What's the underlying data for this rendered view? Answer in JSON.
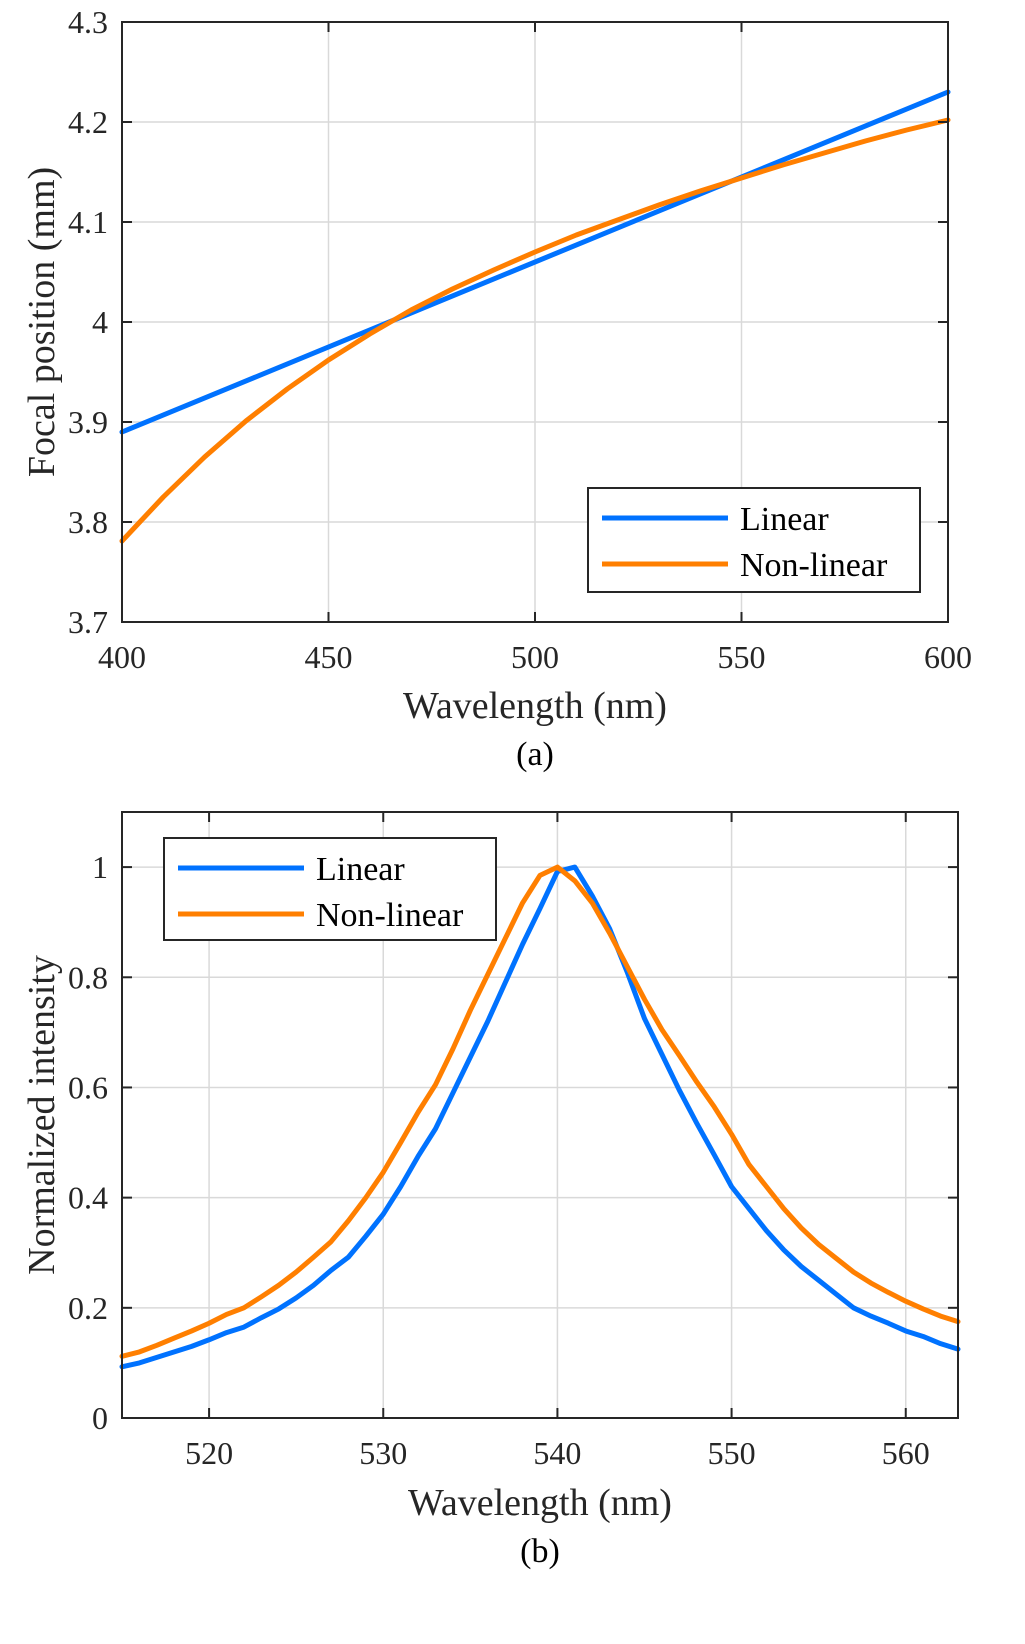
{
  "colors": {
    "linear": "#0072ff",
    "nonlinear": "#ff7f00"
  },
  "chart_data": [
    {
      "type": "line",
      "caption": "(a)",
      "xlabel": "Wavelength (nm)",
      "ylabel": "Focal position (mm)",
      "xlim": [
        400,
        600
      ],
      "ylim": [
        3.7,
        4.3
      ],
      "xticks": [
        400,
        450,
        500,
        550,
        600
      ],
      "yticks": [
        3.7,
        3.8,
        3.9,
        4.0,
        4.1,
        4.2,
        4.3
      ],
      "xtick_labels": [
        "400",
        "450",
        "500",
        "550",
        "600"
      ],
      "ytick_labels": [
        "3.7",
        "3.8",
        "3.9",
        "4",
        "4.1",
        "4.2",
        "4.3"
      ],
      "grid": true,
      "legend_position": "bottom-right",
      "series": [
        {
          "name": "Linear",
          "color": "#0072ff",
          "x": [
            400,
            600
          ],
          "y": [
            3.89,
            4.23
          ]
        },
        {
          "name": "Non-linear",
          "color": "#ff7f00",
          "x": [
            400,
            410,
            420,
            430,
            440,
            450,
            460,
            470,
            480,
            490,
            500,
            510,
            520,
            530,
            540,
            550,
            560,
            570,
            580,
            590,
            600
          ],
          "y": [
            3.781,
            3.825,
            3.865,
            3.901,
            3.933,
            3.962,
            3.988,
            4.012,
            4.033,
            4.052,
            4.07,
            4.087,
            4.102,
            4.117,
            4.131,
            4.144,
            4.157,
            4.169,
            4.181,
            4.192,
            4.202
          ]
        }
      ]
    },
    {
      "type": "line",
      "caption": "(b)",
      "xlabel": "Wavelength (nm)",
      "ylabel": "Normalized intensity",
      "xlim": [
        515,
        563
      ],
      "ylim": [
        0,
        1.1
      ],
      "xticks": [
        520,
        530,
        540,
        550,
        560
      ],
      "yticks": [
        0,
        0.2,
        0.4,
        0.6,
        0.8,
        1.0
      ],
      "xtick_labels": [
        "520",
        "530",
        "540",
        "550",
        "560"
      ],
      "ytick_labels": [
        "0",
        "0.2",
        "0.4",
        "0.6",
        "0.8",
        "1"
      ],
      "grid": true,
      "legend_position": "top-left",
      "series": [
        {
          "name": "Linear",
          "color": "#0072ff",
          "x": [
            515,
            516,
            517,
            518,
            519,
            520,
            521,
            522,
            523,
            524,
            525,
            526,
            527,
            528,
            529,
            530,
            531,
            532,
            533,
            534,
            535,
            536,
            537,
            538,
            539,
            540,
            541,
            542,
            543,
            544,
            545,
            546,
            547,
            548,
            549,
            550,
            551,
            552,
            553,
            554,
            555,
            556,
            557,
            558,
            559,
            560,
            561,
            562,
            563
          ],
          "y": [
            0.093,
            0.1,
            0.11,
            0.12,
            0.13,
            0.142,
            0.155,
            0.165,
            0.182,
            0.198,
            0.218,
            0.241,
            0.268,
            0.292,
            0.33,
            0.37,
            0.42,
            0.475,
            0.525,
            0.59,
            0.655,
            0.72,
            0.79,
            0.86,
            0.925,
            0.992,
            1.0,
            0.948,
            0.888,
            0.81,
            0.725,
            0.66,
            0.595,
            0.535,
            0.478,
            0.42,
            0.38,
            0.34,
            0.305,
            0.275,
            0.25,
            0.225,
            0.2,
            0.185,
            0.172,
            0.158,
            0.148,
            0.135,
            0.125
          ]
        },
        {
          "name": "Non-linear",
          "color": "#ff7f00",
          "x": [
            515,
            516,
            517,
            518,
            519,
            520,
            521,
            522,
            523,
            524,
            525,
            526,
            527,
            528,
            529,
            530,
            531,
            532,
            533,
            534,
            535,
            536,
            537,
            538,
            539,
            540,
            541,
            542,
            543,
            544,
            545,
            546,
            547,
            548,
            549,
            550,
            551,
            552,
            553,
            554,
            555,
            556,
            557,
            558,
            559,
            560,
            561,
            562,
            563
          ],
          "y": [
            0.112,
            0.12,
            0.132,
            0.145,
            0.158,
            0.172,
            0.188,
            0.2,
            0.22,
            0.241,
            0.265,
            0.292,
            0.32,
            0.358,
            0.4,
            0.446,
            0.5,
            0.555,
            0.605,
            0.67,
            0.74,
            0.805,
            0.87,
            0.935,
            0.985,
            1.0,
            0.975,
            0.935,
            0.88,
            0.82,
            0.76,
            0.705,
            0.658,
            0.61,
            0.565,
            0.515,
            0.46,
            0.42,
            0.38,
            0.345,
            0.315,
            0.29,
            0.265,
            0.245,
            0.228,
            0.212,
            0.198,
            0.185,
            0.175
          ]
        }
      ]
    }
  ]
}
